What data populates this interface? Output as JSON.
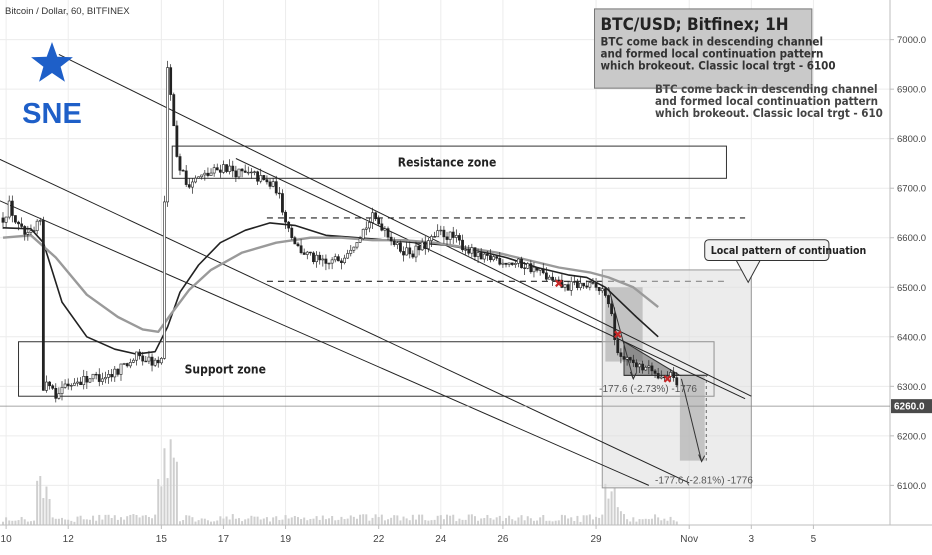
{
  "chart_header": "Bitcoin / Dollar, 60, BITFINEX",
  "logo_text": "SNE",
  "colors": {
    "logo": "#1e5fc8",
    "marker": "#c62828",
    "grid": "#ececec",
    "price_tag": "#4a4a4a"
  },
  "chart_data": {
    "type": "candlestick",
    "symbol": "BTC/USD",
    "exchange": "BITFINEX",
    "interval": "60",
    "y_ticks": [
      "7000.0",
      "6900.0",
      "6800.0",
      "6700.0",
      "6600.0",
      "6500.0",
      "6400.0",
      "6300.0",
      "6200.0",
      "6100.0"
    ],
    "y_range": [
      6020,
      7080
    ],
    "x_ticks": [
      {
        "label": "10",
        "day": 10
      },
      {
        "label": "12",
        "day": 12
      },
      {
        "label": "15",
        "day": 15
      },
      {
        "label": "17",
        "day": 17
      },
      {
        "label": "19",
        "day": 19
      },
      {
        "label": "22",
        "day": 22
      },
      {
        "label": "24",
        "day": 24
      },
      {
        "label": "26",
        "day": 26
      },
      {
        "label": "29",
        "day": 29
      },
      {
        "label": "Nov",
        "day": 32
      },
      {
        "label": "3",
        "day": 34
      },
      {
        "label": "5",
        "day": 36
      }
    ],
    "current_price": "6260.0",
    "price_path": [
      [
        9.9,
        6640
      ],
      [
        10.1,
        6665
      ],
      [
        10.4,
        6620
      ],
      [
        10.7,
        6600
      ],
      [
        10.9,
        6610
      ],
      [
        11.1,
        6635
      ],
      [
        11.2,
        6300
      ],
      [
        11.4,
        6310
      ],
      [
        11.6,
        6285
      ],
      [
        11.9,
        6300
      ],
      [
        12.1,
        6305
      ],
      [
        12.5,
        6315
      ],
      [
        13.0,
        6320
      ],
      [
        13.4,
        6325
      ],
      [
        13.8,
        6345
      ],
      [
        14.2,
        6360
      ],
      [
        14.5,
        6355
      ],
      [
        14.9,
        6345
      ],
      [
        15.05,
        6360
      ],
      [
        15.15,
        6980
      ],
      [
        15.3,
        6900
      ],
      [
        15.5,
        6760
      ],
      [
        15.8,
        6710
      ],
      [
        16.2,
        6720
      ],
      [
        16.6,
        6730
      ],
      [
        17.0,
        6745
      ],
      [
        17.5,
        6730
      ],
      [
        18.0,
        6725
      ],
      [
        18.4,
        6710
      ],
      [
        18.7,
        6700
      ],
      [
        18.9,
        6660
      ],
      [
        19.1,
        6620
      ],
      [
        19.4,
        6580
      ],
      [
        19.8,
        6560
      ],
      [
        20.3,
        6545
      ],
      [
        20.8,
        6560
      ],
      [
        21.3,
        6600
      ],
      [
        21.8,
        6640
      ],
      [
        22.2,
        6620
      ],
      [
        22.6,
        6580
      ],
      [
        23.1,
        6570
      ],
      [
        23.5,
        6585
      ],
      [
        24.0,
        6610
      ],
      [
        24.4,
        6600
      ],
      [
        24.9,
        6575
      ],
      [
        25.3,
        6555
      ],
      [
        25.7,
        6560
      ],
      [
        26.2,
        6550
      ],
      [
        26.7,
        6545
      ],
      [
        27.2,
        6530
      ],
      [
        27.6,
        6510
      ],
      [
        28.0,
        6500
      ],
      [
        28.4,
        6505
      ],
      [
        28.9,
        6500
      ],
      [
        29.3,
        6490
      ],
      [
        29.5,
        6440
      ],
      [
        29.7,
        6370
      ],
      [
        29.9,
        6360
      ],
      [
        30.3,
        6350
      ],
      [
        30.7,
        6335
      ],
      [
        31.1,
        6325
      ],
      [
        31.4,
        6320
      ],
      [
        31.6,
        6300
      ],
      [
        31.7,
        6262
      ]
    ],
    "series": [
      {
        "name": "",
        "color": "#222222",
        "points": [
          [
            9.9,
            6620
          ],
          [
            10.8,
            6618
          ],
          [
            11.2,
            6590
          ],
          [
            11.8,
            6470
          ],
          [
            12.6,
            6400
          ],
          [
            13.5,
            6375
          ],
          [
            14.2,
            6365
          ],
          [
            14.8,
            6370
          ],
          [
            15.2,
            6420
          ],
          [
            15.6,
            6490
          ],
          [
            16.2,
            6545
          ],
          [
            16.9,
            6590
          ],
          [
            17.7,
            6615
          ],
          [
            18.5,
            6630
          ],
          [
            19.3,
            6625
          ],
          [
            20.3,
            6605
          ],
          [
            21.3,
            6600
          ],
          [
            22.3,
            6595
          ],
          [
            23.2,
            6590
          ],
          [
            24.2,
            6585
          ],
          [
            25.1,
            6575
          ],
          [
            26.1,
            6560
          ],
          [
            27.1,
            6540
          ],
          [
            28.1,
            6525
          ],
          [
            28.7,
            6520
          ],
          [
            29.3,
            6500
          ],
          [
            30.3,
            6440
          ],
          [
            31.0,
            6400
          ]
        ]
      },
      {
        "name": "",
        "color": "#9a9a9a",
        "points": [
          [
            9.9,
            6600
          ],
          [
            10.8,
            6605
          ],
          [
            11.6,
            6560
          ],
          [
            12.6,
            6485
          ],
          [
            13.6,
            6440
          ],
          [
            14.4,
            6415
          ],
          [
            14.9,
            6410
          ],
          [
            15.3,
            6445
          ],
          [
            15.9,
            6495
          ],
          [
            16.6,
            6535
          ],
          [
            17.6,
            6570
          ],
          [
            18.7,
            6590
          ],
          [
            19.8,
            6600
          ],
          [
            20.8,
            6600
          ],
          [
            21.8,
            6595
          ],
          [
            22.8,
            6595
          ],
          [
            23.8,
            6590
          ],
          [
            24.8,
            6580
          ],
          [
            25.8,
            6570
          ],
          [
            26.8,
            6555
          ],
          [
            27.8,
            6540
          ],
          [
            28.8,
            6530
          ],
          [
            29.4,
            6520
          ],
          [
            30.2,
            6500
          ],
          [
            31.0,
            6460
          ]
        ]
      }
    ],
    "annotations": {
      "title": "BTC/USD; Bitfinex; 1H",
      "description": [
        "BTC come back in descending channel",
        "and formed local continuation pattern",
        "which brokeout. Classic local trgt - 6100"
      ],
      "description_cut": [
        "BTC come back in descending channel",
        "and formed local continuation pattern",
        "which brokeout. Classic local trgt - 610"
      ],
      "resistance_label": "Resistance zone",
      "support_label": "Support zone",
      "pattern_label": "Local pattern of continuation",
      "measure_1": "-177.6 (-2.73%) -1776",
      "measure_2": "-177.6 (-2.81%) -1776",
      "resistance_zone": [
        6720,
        6785
      ],
      "support_zone": [
        6280,
        6390
      ],
      "dashed_levels": [
        6640,
        6512
      ],
      "channel_lines": [
        [
          [
            11.7,
            6970
          ],
          [
            34.0,
            6280
          ]
        ],
        [
          [
            9.4,
            6770
          ],
          [
            32.0,
            6105
          ]
        ],
        [
          [
            9.6,
            6680
          ],
          [
            30.7,
            6100
          ]
        ],
        [
          [
            17.4,
            6760
          ],
          [
            33.8,
            6275
          ]
        ]
      ],
      "x_markers": [
        [
          27.8,
          6508
        ],
        [
          29.7,
          6405
        ],
        [
          31.3,
          6315
        ]
      ],
      "pattern_box": {
        "days": [
          29.2,
          34.0
        ],
        "prices": [
          6095,
          6535
        ]
      }
    }
  }
}
